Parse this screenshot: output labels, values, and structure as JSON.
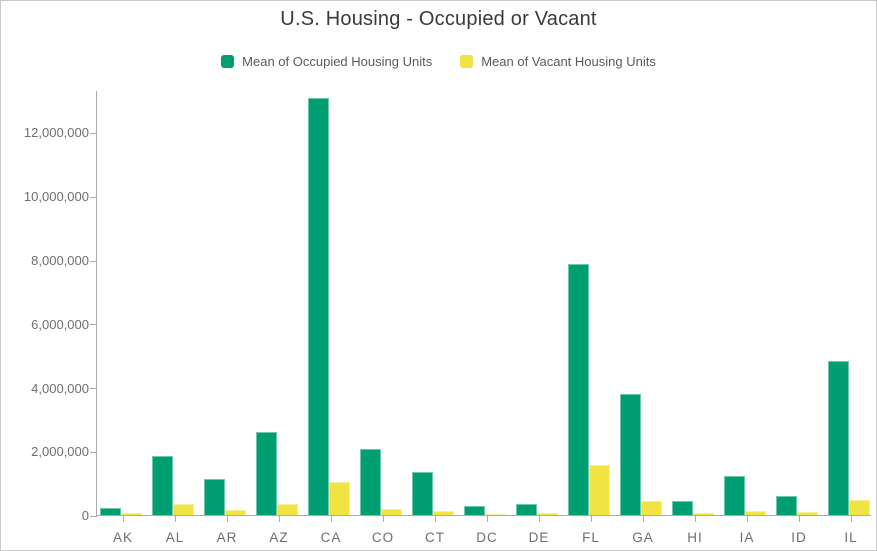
{
  "title": "U.S. Housing - Occupied or Vacant",
  "legend": {
    "items": [
      {
        "label": "Mean of Occupied Housing Units",
        "color": "#009E73"
      },
      {
        "label": "Mean of Vacant Housing Units",
        "color": "#F0E442"
      }
    ]
  },
  "colors": {
    "occupied": "#009E73",
    "occupied_border": "#6fc7ac",
    "vacant": "#F0E442",
    "vacant_border": "#f7f09a",
    "axis": "#ababab",
    "tick_text": "#6e6e6e"
  },
  "chart_data": {
    "type": "bar",
    "title": "U.S. Housing - Occupied or Vacant",
    "xlabel": "",
    "ylabel": "",
    "grid": false,
    "legend_position": "top",
    "categories": [
      "AK",
      "AL",
      "AR",
      "AZ",
      "CA",
      "CO",
      "CT",
      "DC",
      "DE",
      "FL",
      "GA",
      "HI",
      "IA",
      "ID",
      "IL"
    ],
    "series": [
      {
        "name": "Mean of Occupied Housing Units",
        "color": "#009E73",
        "border": "#6fc7ac",
        "values": [
          230000,
          1840000,
          1120000,
          2590000,
          13070000,
          2080000,
          1340000,
          280000,
          340000,
          7880000,
          3790000,
          430000,
          1230000,
          600000,
          4820000
        ]
      },
      {
        "name": "Mean of Vacant Housing Units",
        "color": "#F0E442",
        "border": "#f7f09a",
        "values": [
          60000,
          330000,
          160000,
          350000,
          1050000,
          190000,
          130000,
          30000,
          60000,
          1570000,
          450000,
          75000,
          110000,
          85000,
          480000
        ]
      }
    ],
    "y_ticks": [
      0,
      2000000,
      4000000,
      6000000,
      8000000,
      10000000,
      12000000
    ],
    "y_tick_labels": [
      "0",
      "2,000,000",
      "4,000,000",
      "6,000,000",
      "8,000,000",
      "10,000,000",
      "12,000,000"
    ],
    "ylim": [
      0,
      13333333
    ]
  }
}
